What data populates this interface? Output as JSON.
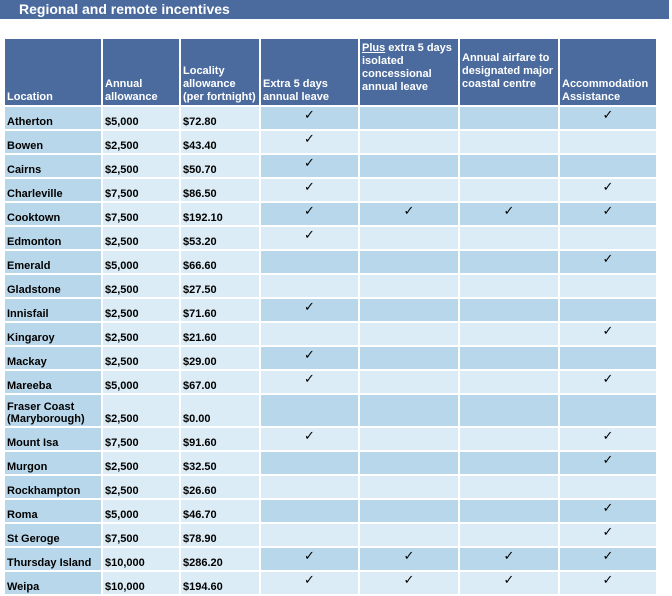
{
  "title": "Regional and remote incentives",
  "headers": {
    "location": "Location",
    "annual_allowance": "Annual allowance",
    "locality_allowance": "Locality allowance (per fortnight)",
    "extra_leave": "Extra 5 days annual leave",
    "plus_word": "Plus",
    "plus_rest": " extra 5 days isolated concessional annual leave",
    "airfare": "Annual airfare to designated major coastal centre",
    "accommodation": "Accommodation Assistance"
  },
  "check_glyph": "✓",
  "rows": [
    {
      "location": "Atherton",
      "annual": "$5,000",
      "locality": "$72.80",
      "leave": true,
      "isolated": false,
      "airfare": false,
      "accom": true
    },
    {
      "location": "Bowen",
      "annual": "$2,500",
      "locality": "$43.40",
      "leave": true,
      "isolated": false,
      "airfare": false,
      "accom": false
    },
    {
      "location": "Cairns",
      "annual": "$2,500",
      "locality": "$50.70",
      "leave": true,
      "isolated": false,
      "airfare": false,
      "accom": false
    },
    {
      "location": "Charleville",
      "annual": "$7,500",
      "locality": "$86.50",
      "leave": true,
      "isolated": false,
      "airfare": false,
      "accom": true
    },
    {
      "location": "Cooktown",
      "annual": "$7,500",
      "locality": "$192.10",
      "leave": true,
      "isolated": true,
      "airfare": true,
      "accom": true
    },
    {
      "location": "Edmonton",
      "annual": "$2,500",
      "locality": "$53.20",
      "leave": true,
      "isolated": false,
      "airfare": false,
      "accom": false
    },
    {
      "location": "Emerald",
      "annual": "$5,000",
      "locality": "$66.60",
      "leave": false,
      "isolated": false,
      "airfare": false,
      "accom": true
    },
    {
      "location": "Gladstone",
      "annual": "$2,500",
      "locality": "$27.50",
      "leave": false,
      "isolated": false,
      "airfare": false,
      "accom": false
    },
    {
      "location": "Innisfail",
      "annual": "$2,500",
      "locality": "$71.60",
      "leave": true,
      "isolated": false,
      "airfare": false,
      "accom": false
    },
    {
      "location": "Kingaroy",
      "annual": "$2,500",
      "locality": "$21.60",
      "leave": false,
      "isolated": false,
      "airfare": false,
      "accom": true
    },
    {
      "location": "Mackay",
      "annual": "$2,500",
      "locality": "$29.00",
      "leave": true,
      "isolated": false,
      "airfare": false,
      "accom": false
    },
    {
      "location": "Mareeba",
      "annual": "$5,000",
      "locality": "$67.00",
      "leave": true,
      "isolated": false,
      "airfare": false,
      "accom": true
    },
    {
      "location": "Fraser Coast (Maryborough)",
      "annual": "$2,500",
      "locality": "$0.00",
      "leave": false,
      "isolated": false,
      "airfare": false,
      "accom": false,
      "tall": true
    },
    {
      "location": "Mount Isa",
      "annual": "$7,500",
      "locality": "$91.60",
      "leave": true,
      "isolated": false,
      "airfare": false,
      "accom": true
    },
    {
      "location": "Murgon",
      "annual": "$2,500",
      "locality": "$32.50",
      "leave": false,
      "isolated": false,
      "airfare": false,
      "accom": true
    },
    {
      "location": "Rockhampton",
      "annual": "$2,500",
      "locality": "$26.60",
      "leave": false,
      "isolated": false,
      "airfare": false,
      "accom": false
    },
    {
      "location": "Roma",
      "annual": "$5,000",
      "locality": "$46.70",
      "leave": false,
      "isolated": false,
      "airfare": false,
      "accom": true
    },
    {
      "location": "St Geroge",
      "annual": "$7,500",
      "locality": "$78.90",
      "leave": false,
      "isolated": false,
      "airfare": false,
      "accom": true
    },
    {
      "location": "Thursday Island",
      "annual": "$10,000",
      "locality": "$286.20",
      "leave": true,
      "isolated": true,
      "airfare": true,
      "accom": true
    },
    {
      "location": "Weipa",
      "annual": "$10,000",
      "locality": "$194.60",
      "leave": true,
      "isolated": true,
      "airfare": true,
      "accom": true
    }
  ],
  "colors": {
    "header_bg": "#4b6b9e",
    "cell_dark": "#b8d7ea",
    "cell_light": "#dbecf6"
  }
}
